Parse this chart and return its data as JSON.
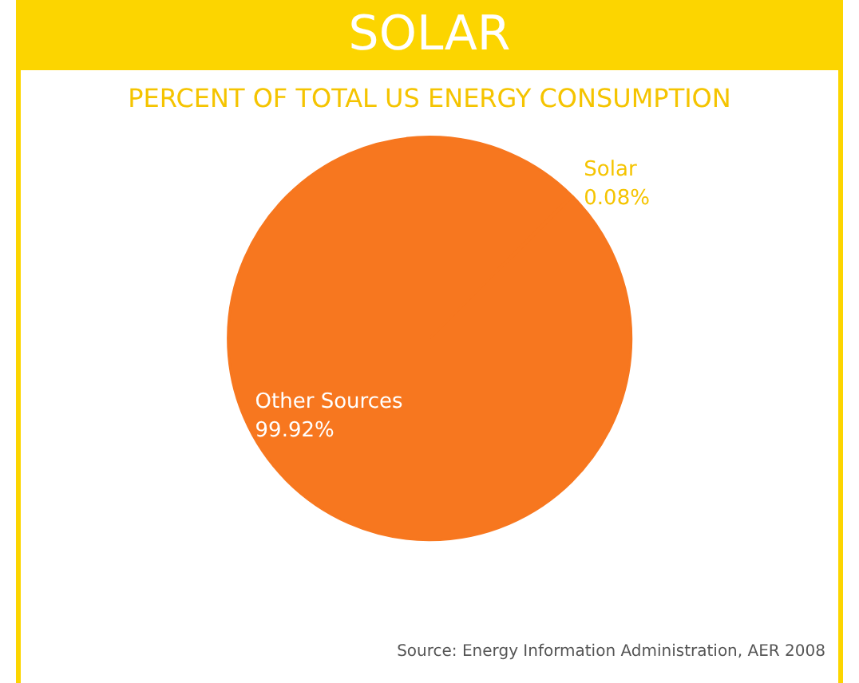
{
  "chart_data": {
    "type": "pie",
    "title": "SOLAR",
    "subtitle": "PERCENT OF TOTAL US ENERGY CONSUMPTION",
    "categories": [
      "Solar",
      "Other Sources"
    ],
    "values": [
      0.08,
      99.92
    ],
    "value_labels": [
      "0.08%",
      "99.92%"
    ],
    "colors": [
      "#f5c400",
      "#f7771f"
    ],
    "annotations": [
      "Source: Energy Information Administration, AER 2008"
    ]
  }
}
